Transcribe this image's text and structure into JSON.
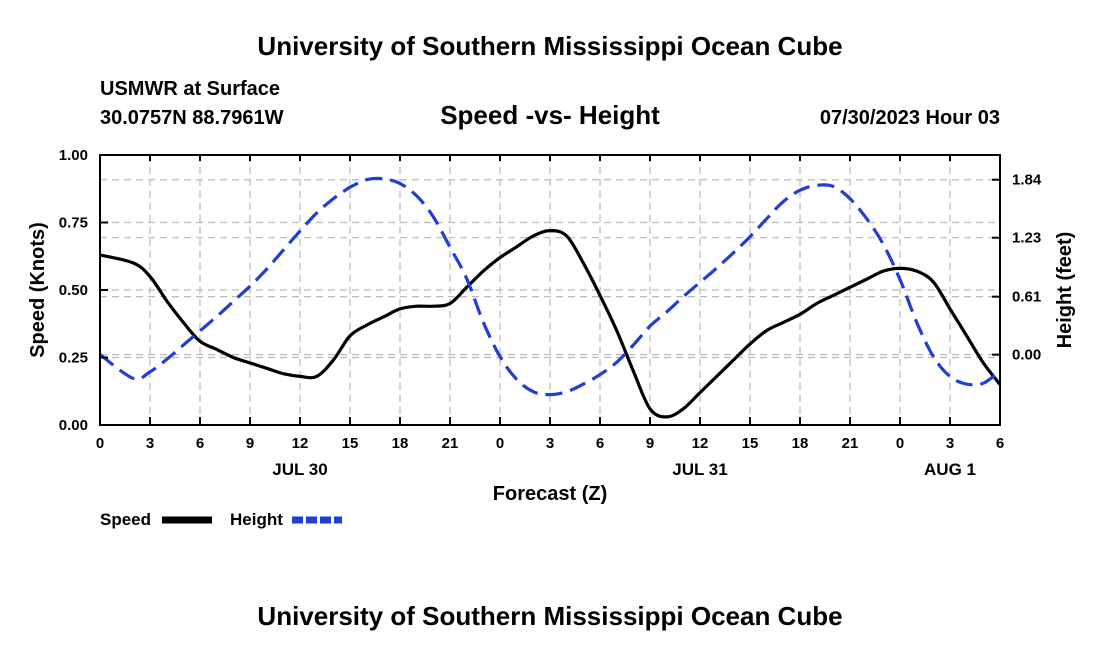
{
  "chart_data": {
    "type": "line",
    "title": "University of Southern Mississippi Ocean Cube",
    "footer_title": "University of Southern Mississippi Ocean Cube",
    "station": "USMWR at Surface",
    "location": "30.0757N  88.7961W",
    "subtitle": "Speed -vs- Height",
    "date": "07/30/2023 Hour 03",
    "xlabel": "Forecast (Z)",
    "ylabel_left": "Speed (Knots)",
    "ylabel_right": "Height (feet)",
    "x_ticks": [
      "0",
      "3",
      "6",
      "9",
      "12",
      "15",
      "18",
      "21",
      "0",
      "3",
      "6",
      "9",
      "12",
      "15",
      "18",
      "21",
      "0",
      "3",
      "6"
    ],
    "date_labels": [
      {
        "label": "JUL 30",
        "hour": 12
      },
      {
        "label": "JUL 31",
        "hour": 36
      },
      {
        "label": "AUG 1",
        "hour": 51
      }
    ],
    "xlim": [
      0,
      54
    ],
    "y_left": {
      "lim": [
        0,
        1.0
      ],
      "ticks": [
        "0.00",
        "0.25",
        "0.50",
        "0.75",
        "1.00"
      ]
    },
    "y_right": {
      "lim": [
        -0.74,
        2.1
      ],
      "ticks": [
        "0.00",
        "0.61",
        "1.23",
        "1.84"
      ]
    },
    "grid": true,
    "legend_position": "bottom-left",
    "x_hours": [
      0,
      2,
      3,
      4,
      5,
      6,
      7,
      8,
      9,
      10,
      11,
      12,
      13,
      14,
      15,
      16,
      17,
      18,
      19,
      20,
      21,
      22,
      23,
      24,
      25,
      26,
      27,
      28,
      29,
      30,
      31,
      32,
      33,
      34,
      35,
      36,
      37,
      38,
      39,
      40,
      41,
      42,
      43,
      44,
      45,
      46,
      47,
      48,
      49,
      50,
      51,
      52,
      53,
      54
    ],
    "series": [
      {
        "name": "Speed",
        "axis": "left",
        "color": "#000000",
        "dashed": false,
        "values": [
          0.63,
          0.6,
          0.55,
          0.46,
          0.38,
          0.31,
          0.28,
          0.25,
          0.23,
          0.21,
          0.19,
          0.18,
          0.18,
          0.24,
          0.33,
          0.37,
          0.4,
          0.43,
          0.44,
          0.44,
          0.45,
          0.51,
          0.57,
          0.62,
          0.66,
          0.7,
          0.72,
          0.7,
          0.6,
          0.48,
          0.35,
          0.2,
          0.06,
          0.03,
          0.06,
          0.12,
          0.18,
          0.24,
          0.3,
          0.35,
          0.38,
          0.41,
          0.45,
          0.48,
          0.51,
          0.54,
          0.57,
          0.58,
          0.57,
          0.53,
          0.43,
          0.33,
          0.23,
          0.15
        ]
      },
      {
        "name": "Height",
        "axis": "right",
        "color": "#1f3ed6",
        "dashed": true,
        "values": [
          0.0,
          -0.25,
          -0.18,
          -0.05,
          0.1,
          0.25,
          0.4,
          0.56,
          0.72,
          0.9,
          1.1,
          1.3,
          1.49,
          1.64,
          1.76,
          1.84,
          1.85,
          1.8,
          1.67,
          1.45,
          1.13,
          0.8,
          0.34,
          -0.02,
          -0.26,
          -0.39,
          -0.42,
          -0.39,
          -0.31,
          -0.21,
          -0.08,
          0.1,
          0.3,
          0.45,
          0.61,
          0.76,
          0.91,
          1.07,
          1.24,
          1.43,
          1.61,
          1.73,
          1.78,
          1.77,
          1.64,
          1.43,
          1.16,
          0.79,
          0.34,
          -0.02,
          -0.23,
          -0.31,
          -0.3,
          -0.17
        ]
      }
    ]
  }
}
